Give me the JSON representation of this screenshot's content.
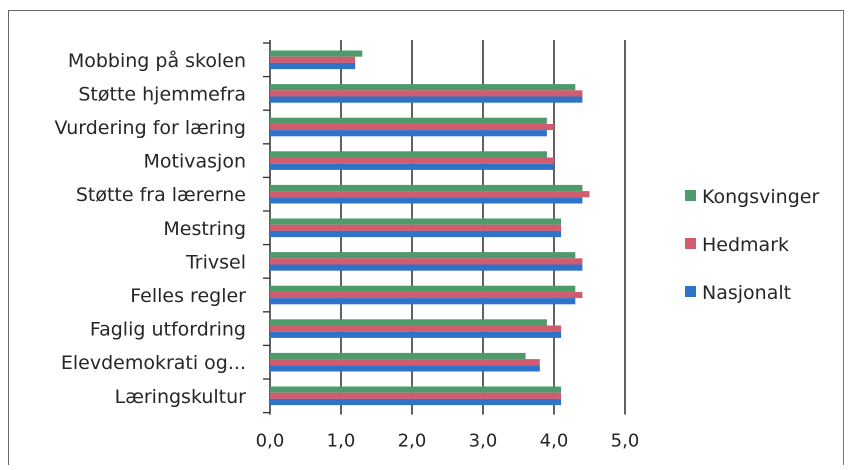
{
  "chart_data": {
    "type": "bar",
    "orientation": "horizontal",
    "categories": [
      "Mobbing på skolen",
      "Støtte hjemmefra",
      "Vurdering for læring",
      "Motivasjon",
      "Støtte fra lærerne",
      "Mestring",
      "Trivsel",
      "Felles regler",
      "Faglig utfordring",
      "Elevdemokrati og...",
      "Læringskultur"
    ],
    "series": [
      {
        "name": "Kongsvinger",
        "color": "#4f9a6b",
        "values": [
          1.3,
          4.3,
          3.9,
          3.9,
          4.4,
          4.1,
          4.3,
          4.3,
          3.9,
          3.6,
          4.1
        ]
      },
      {
        "name": "Hedmark",
        "color": "#d15c6f",
        "values": [
          1.2,
          4.4,
          4.0,
          4.0,
          4.5,
          4.1,
          4.4,
          4.4,
          4.1,
          3.8,
          4.1
        ]
      },
      {
        "name": "Nasjonalt",
        "color": "#2f73c9",
        "values": [
          1.2,
          4.4,
          3.9,
          4.0,
          4.4,
          4.1,
          4.4,
          4.3,
          4.1,
          3.8,
          4.1
        ]
      }
    ],
    "xlim": [
      0,
      5
    ],
    "xticks": [
      "0,0",
      "1,0",
      "2,0",
      "3,0",
      "4,0",
      "5,0"
    ],
    "grid": "vertical",
    "legend": "right",
    "title": "",
    "xlabel": "",
    "ylabel": ""
  }
}
